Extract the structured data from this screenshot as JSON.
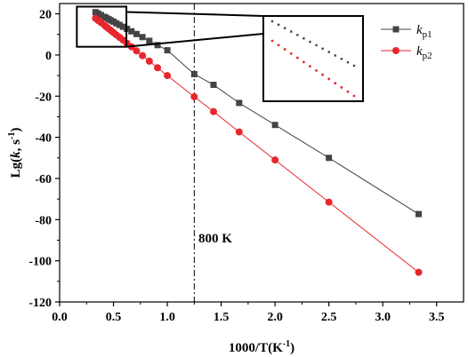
{
  "chart_data": {
    "type": "scatter",
    "xlabel": "1000/T(K⁻¹)",
    "ylabel": "Lg(k, s⁻¹)",
    "ylabel_parts": {
      "pre": "Lg(",
      "k": "k",
      "mid": ", s",
      "sup": "-1",
      "post": ")"
    },
    "xlabel_parts": {
      "pre": "1000/T(K",
      "sup": "-1",
      "post": ")"
    },
    "xlim": [
      0.0,
      3.75
    ],
    "ylim": [
      -120,
      25
    ],
    "xticks": [
      0.0,
      0.5,
      1.0,
      1.5,
      2.0,
      2.5,
      3.0,
      3.5
    ],
    "xtick_labels": [
      "0.0",
      "0.5",
      "1.0",
      "1.5",
      "2.0",
      "2.5",
      "3.0",
      "3.5"
    ],
    "yticks": [
      20,
      0,
      -20,
      -40,
      -60,
      -80,
      -100,
      -120
    ],
    "ytick_labels": [
      "20",
      "0",
      "-20",
      "-40",
      "-60",
      "-80",
      "-100",
      "-120"
    ],
    "grid": false,
    "legend_position": "top-right",
    "annotation": {
      "text": "800 K",
      "x_line": 1.25
    },
    "series": [
      {
        "name": "kp1",
        "label_italic": "k",
        "label_sub": "p1",
        "color": "#444444",
        "marker": "square",
        "x": [
          0.333,
          0.357,
          0.385,
          0.417,
          0.435,
          0.455,
          0.476,
          0.5,
          0.526,
          0.556,
          0.588,
          0.625,
          0.667,
          0.714,
          0.769,
          0.833,
          0.909,
          1.0,
          1.25,
          1.429,
          1.667,
          2.0,
          2.5,
          3.333
        ],
        "y": [
          20.8,
          20.2,
          19.4,
          18.5,
          18.0,
          17.4,
          16.8,
          16.2,
          15.4,
          14.6,
          13.7,
          12.7,
          11.5,
          10.2,
          8.7,
          6.9,
          4.8,
          2.3,
          -9.3,
          -14.5,
          -23.3,
          -34.0,
          -50.0,
          -77.3
        ]
      },
      {
        "name": "kp2",
        "label_italic": "k",
        "label_sub": "p2",
        "color": "#e8262c",
        "marker": "circle",
        "x": [
          0.333,
          0.357,
          0.385,
          0.417,
          0.435,
          0.455,
          0.476,
          0.5,
          0.526,
          0.556,
          0.588,
          0.625,
          0.667,
          0.714,
          0.769,
          0.833,
          0.909,
          1.0,
          1.25,
          1.429,
          1.667,
          2.0,
          2.5,
          3.333
        ],
        "y": [
          17.8,
          16.8,
          15.7,
          14.4,
          13.6,
          12.8,
          11.9,
          10.9,
          9.8,
          8.6,
          7.3,
          5.7,
          4.0,
          2.0,
          -0.3,
          -3.0,
          -6.2,
          -10.0,
          -20.3,
          -27.5,
          -37.4,
          -51.0,
          -71.5,
          -105.6
        ]
      }
    ]
  }
}
